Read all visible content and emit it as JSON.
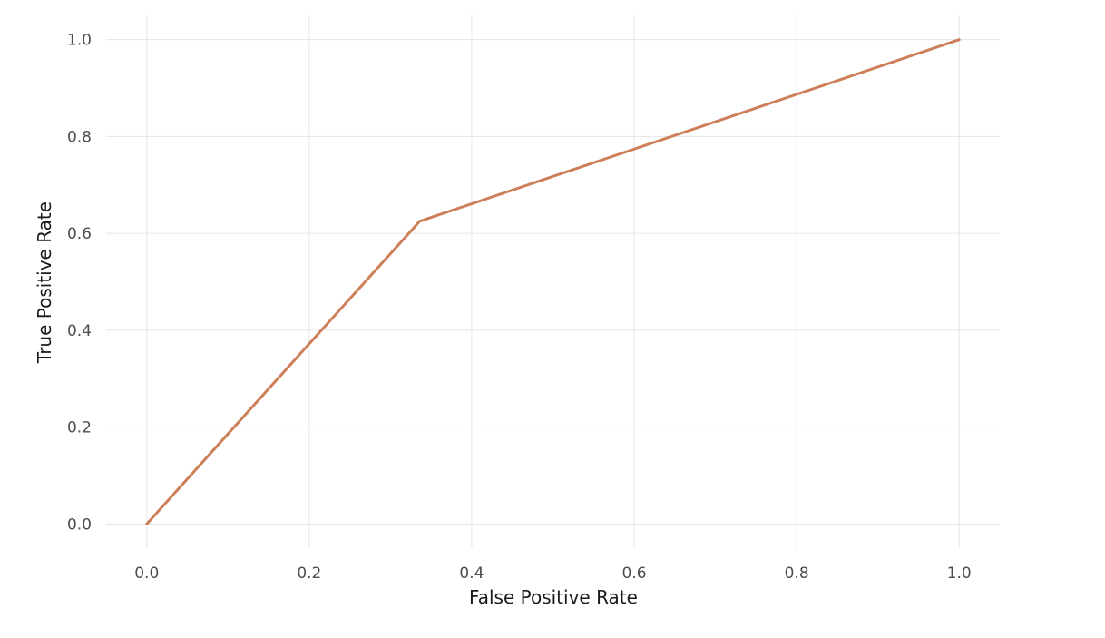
{
  "chart_data": {
    "type": "line",
    "title": "",
    "xlabel": "False Positive Rate",
    "ylabel": "True Positive Rate",
    "xlim": [
      -0.05,
      1.05
    ],
    "ylim": [
      -0.05,
      1.05
    ],
    "x_ticks": [
      0.0,
      0.2,
      0.4,
      0.6,
      0.8,
      1.0
    ],
    "y_ticks": [
      0.0,
      0.2,
      0.4,
      0.6,
      0.8,
      1.0
    ],
    "x_tick_labels": [
      "0.0",
      "0.2",
      "0.4",
      "0.6",
      "0.8",
      "1.0"
    ],
    "y_tick_labels": [
      "0.0",
      "0.2",
      "0.4",
      "0.6",
      "0.8",
      "1.0"
    ],
    "grid": true,
    "series": [
      {
        "x": [
          0.0,
          0.336,
          1.0
        ],
        "y": [
          0.0,
          0.625,
          1.0
        ],
        "color": "#cd7f5a"
      }
    ]
  }
}
